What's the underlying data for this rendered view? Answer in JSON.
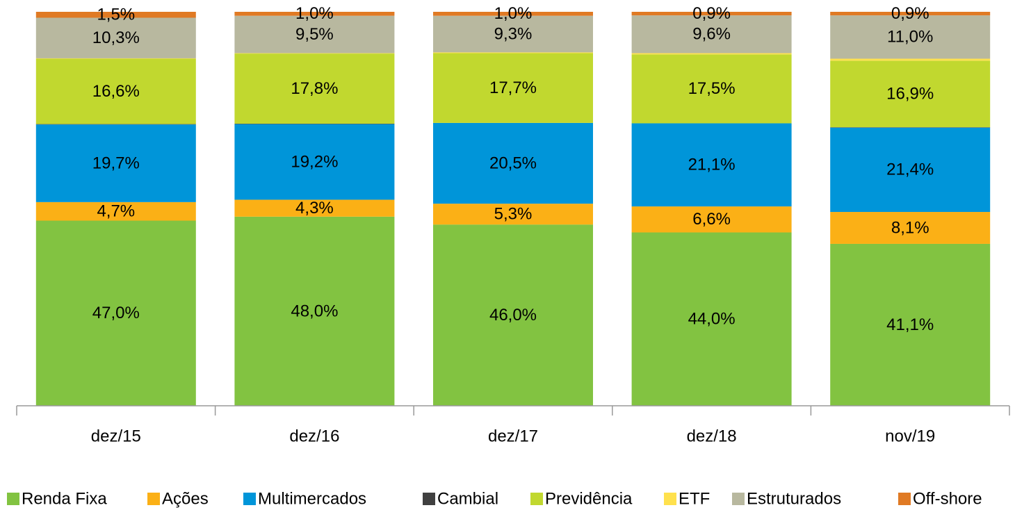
{
  "chart_data": {
    "type": "stacked_bar",
    "categories": [
      "dez/15",
      "dez/16",
      "dez/17",
      "dez/18",
      "nov/19"
    ],
    "ylim": [
      0,
      100
    ],
    "legend": "bottom",
    "series": [
      {
        "name": "Renda Fixa",
        "color": "#82c341",
        "values": [
          47.0,
          48.0,
          46.0,
          44.0,
          41.1
        ],
        "value_labels": [
          "47,0%",
          "48,0%",
          "46,0%",
          "44,0%",
          "41,1%"
        ]
      },
      {
        "name": "Ações",
        "color": "#fbb016",
        "values": [
          4.7,
          4.3,
          5.3,
          6.6,
          8.1
        ],
        "value_labels": [
          "4,7%",
          "4,3%",
          "5,3%",
          "6,6%",
          "8,1%"
        ]
      },
      {
        "name": "Multimercados",
        "color": "#0095d9",
        "values": [
          19.7,
          19.2,
          20.5,
          21.1,
          21.4
        ],
        "value_labels": [
          "19,7%",
          "19,2%",
          "20,5%",
          "21,1%",
          "21,4%"
        ]
      },
      {
        "name": "Cambial",
        "color": "#404040",
        "values": [
          0.1,
          0.1,
          0,
          0,
          0.1
        ]
      },
      {
        "name": "Previdência",
        "color": "#c1d82f",
        "values": [
          16.6,
          17.8,
          17.7,
          17.5,
          16.9
        ],
        "value_labels": [
          "16,6%",
          "17,8%",
          "17,7%",
          "17,5%",
          "16,9%"
        ]
      },
      {
        "name": "ETF",
        "color": "#ffe14d",
        "values": [
          0.1,
          0.1,
          0.2,
          0.3,
          0.5
        ]
      },
      {
        "name": "Estruturados",
        "color": "#b8b89f",
        "values": [
          10.3,
          9.5,
          9.3,
          9.6,
          11.0
        ],
        "value_labels": [
          "10,3%",
          "9,5%",
          "9,3%",
          "9,6%",
          "11,0%"
        ]
      },
      {
        "name": "Off-shore",
        "color": "#e07a24",
        "values": [
          1.5,
          1.0,
          1.0,
          0.9,
          0.9
        ],
        "value_labels": [
          "1,5%",
          "1,0%",
          "1,0%",
          "0,9%",
          "0,9%"
        ]
      }
    ]
  }
}
